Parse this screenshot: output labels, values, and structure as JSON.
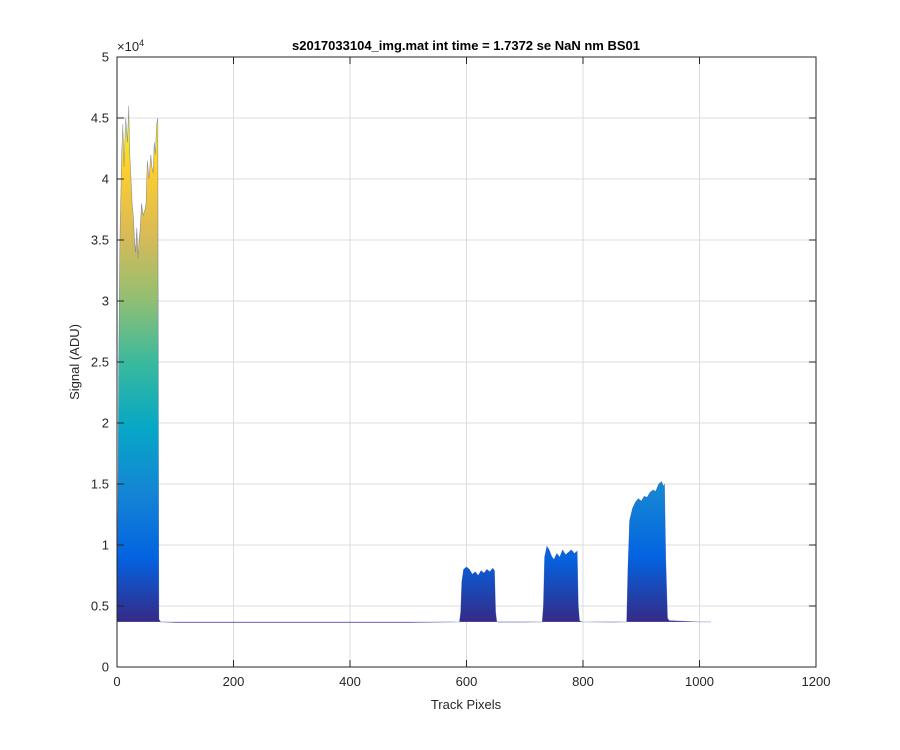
{
  "chart_data": {
    "type": "area",
    "title": "s2017033104_img.mat int time = 1.7372 se  NaN nm BS01",
    "xlabel": "Track Pixels",
    "ylabel": "Signal (ADU)",
    "xlim": [
      0,
      1200
    ],
    "ylim": [
      0,
      50000
    ],
    "xticks": [
      0,
      200,
      400,
      600,
      800,
      1000,
      1200
    ],
    "yticks": [
      0,
      0.5,
      1,
      1.5,
      2,
      2.5,
      3,
      3.5,
      4,
      4.5,
      5
    ],
    "y_exponent_label": "×10",
    "y_exponent_power": "4",
    "grid": true,
    "colormap": "parula",
    "colormap_stops": [
      "#352a87",
      "#0363e1",
      "#1485d4",
      "#06a7c6",
      "#38b99e",
      "#92bf73",
      "#d9ba56",
      "#fcce2e",
      "#f9fb0e"
    ],
    "baseline": 3700,
    "x": [
      0,
      2,
      3,
      5,
      8,
      10,
      12,
      15,
      18,
      20,
      22,
      24,
      26,
      28,
      30,
      32,
      34,
      36,
      38,
      40,
      42,
      45,
      48,
      50,
      52,
      55,
      58,
      60,
      62,
      64,
      66,
      68,
      70,
      71,
      72,
      75,
      100,
      200,
      300,
      400,
      500,
      588,
      590,
      592,
      595,
      600,
      605,
      610,
      615,
      620,
      625,
      630,
      635,
      640,
      645,
      648,
      650,
      652,
      655,
      700,
      730,
      732,
      734,
      738,
      742,
      746,
      750,
      755,
      760,
      765,
      770,
      775,
      780,
      785,
      790,
      792,
      794,
      798,
      850,
      875,
      877,
      880,
      885,
      890,
      895,
      900,
      905,
      910,
      915,
      920,
      925,
      930,
      935,
      938,
      940,
      942,
      945,
      948,
      1000,
      1020
    ],
    "y": [
      3700,
      16000,
      25000,
      35000,
      42000,
      44500,
      41000,
      45000,
      43000,
      46000,
      42000,
      40000,
      38000,
      37000,
      35000,
      34000,
      36000,
      33500,
      35000,
      36000,
      38000,
      37000,
      37500,
      38000,
      41500,
      40000,
      42000,
      41000,
      40500,
      43000,
      42000,
      44500,
      45000,
      20000,
      3900,
      3700,
      3650,
      3650,
      3650,
      3650,
      3650,
      3700,
      4500,
      7000,
      8000,
      8200,
      8000,
      7600,
      7800,
      7500,
      7900,
      7700,
      8000,
      7800,
      8100,
      7900,
      4500,
      3700,
      3680,
      3680,
      3700,
      5000,
      9000,
      9900,
      9600,
      9100,
      8800,
      9300,
      9000,
      9600,
      9200,
      9400,
      9600,
      9300,
      9500,
      5000,
      3800,
      3700,
      3680,
      3700,
      8000,
      12000,
      13000,
      13500,
      13800,
      13600,
      14000,
      13900,
      14300,
      14500,
      14400,
      15000,
      15200,
      14800,
      15000,
      9000,
      4000,
      3800,
      3700,
      3700
    ]
  }
}
